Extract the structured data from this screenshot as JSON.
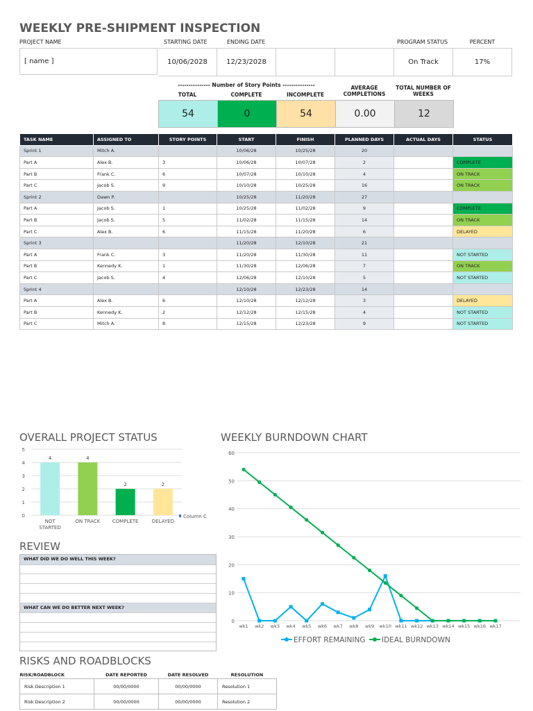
{
  "title": "WEEKLY PRE-SHIPMENT INSPECTION",
  "project": {
    "labels": {
      "name": "PROJECT NAME",
      "start": "STARTING DATE",
      "end": "ENDING DATE",
      "status": "PROGRAM STATUS",
      "percent": "PERCENT COMPLETED"
    },
    "name": "[ name ]",
    "start": "10/06/2028",
    "end": "12/23/2028",
    "status": "On Track",
    "percent": "17%"
  },
  "story_points": {
    "group_label": "---------------  Number of Story Points  ---------------",
    "total_label": "TOTAL",
    "complete_label": "COMPLETE",
    "incomplete_label": "INCOMPLETE",
    "avg_label": "AVERAGE COMPLETIONS",
    "weeks_label": "TOTAL NUMBER OF WEEKS",
    "total": "54",
    "complete": "0",
    "incomplete": "54",
    "avg": "0.00",
    "weeks": "12"
  },
  "tasks": {
    "headers": [
      "TASK NAME",
      "ASSIGNED TO",
      "STORY POINTS",
      "START",
      "FINISH",
      "PLANNED DAYS",
      "ACTUAL DAYS",
      "STATUS"
    ],
    "rows": [
      [
        "Sprint 1",
        "Mitch A.",
        "",
        "10/06/28",
        "10/25/28",
        "20",
        "",
        ""
      ],
      [
        "Part A",
        "Alex B.",
        "3",
        "10/06/28",
        "10/07/28",
        "2",
        "",
        "COMPLETE"
      ],
      [
        "Part B",
        "Frank C.",
        "6",
        "10/07/28",
        "10/10/28",
        "4",
        "",
        "ON TRACK"
      ],
      [
        "Part C",
        "Jacob S.",
        "9",
        "10/10/28",
        "10/25/28",
        "16",
        "",
        "ON TRACK"
      ],
      [
        "Sprint 2",
        "Dawn P.",
        "",
        "10/25/28",
        "11/20/28",
        "27",
        "",
        ""
      ],
      [
        "Part A",
        "Jacob S.",
        "1",
        "10/25/28",
        "11/02/28",
        "9",
        "",
        "COMPLETE"
      ],
      [
        "Part B",
        "Jacob S.",
        "5",
        "11/02/28",
        "11/15/28",
        "14",
        "",
        "ON TRACK"
      ],
      [
        "Part C",
        "Alex B.",
        "6",
        "11/15/28",
        "11/20/28",
        "6",
        "",
        "DELAYED"
      ],
      [
        "Sprint 3",
        "",
        "",
        "11/20/28",
        "12/10/28",
        "21",
        "",
        ""
      ],
      [
        "Part A",
        "Frank C.",
        "3",
        "11/20/28",
        "11/30/28",
        "11",
        "",
        "NOT STARTED"
      ],
      [
        "Part B",
        "Kennedy K.",
        "1",
        "11/30/28",
        "12/06/28",
        "7",
        "",
        "ON TRACK"
      ],
      [
        "Part C",
        "Jacob S.",
        "4",
        "12/06/28",
        "12/10/28",
        "5",
        "",
        "NOT STARTED"
      ],
      [
        "Sprint 4",
        "",
        "",
        "12/10/28",
        "12/23/28",
        "14",
        "",
        ""
      ],
      [
        "Part A",
        "Alex B.",
        "6",
        "12/10/28",
        "12/12/28",
        "3",
        "",
        "DELAYED"
      ],
      [
        "Part B",
        "Kennedy K.",
        "2",
        "12/12/28",
        "12/15/28",
        "4",
        "",
        "NOT STARTED"
      ],
      [
        "Part C",
        "Mitch A.",
        "8",
        "12/15/28",
        "12/23/28",
        "9",
        "",
        "NOT STARTED"
      ]
    ]
  },
  "status_colors": {
    "COMPLETE": "#00b050",
    "ON TRACK": "#92d050",
    "DELAYED": "#ffe699",
    "NOT STARTED": "#aeeee8"
  },
  "overall_title": "OVERALL PROJECT STATUS",
  "burndown_title": "WEEKLY BURNDOWN CHART",
  "chart_data": [
    {
      "type": "bar",
      "categories": [
        "NOT STARTED",
        "ON TRACK",
        "COMPLETE",
        "DELAYED"
      ],
      "values": [
        4,
        4,
        2,
        2
      ],
      "colors": [
        "#aeeee8",
        "#92d050",
        "#00b050",
        "#ffe699"
      ],
      "ylim": [
        0,
        5
      ],
      "yticks": [
        "0",
        "1",
        "2",
        "3",
        "4",
        "5"
      ],
      "legend": "Column C",
      "legend_position": "right",
      "grid": true
    },
    {
      "type": "line",
      "categories": [
        "wk1",
        "wk2",
        "wk3",
        "wk4",
        "wk5",
        "wk6",
        "wk7",
        "wk8",
        "wk9",
        "wk10",
        "wk11",
        "wk12",
        "wk13",
        "wk14",
        "wk15",
        "wk16",
        "wk17"
      ],
      "series": [
        {
          "name": "EFFORT REMAINING",
          "color": "#00b0f0",
          "values": [
            15,
            0,
            0,
            5,
            0,
            6,
            3,
            1,
            4,
            16,
            0,
            0,
            0,
            0,
            0,
            0,
            0
          ]
        },
        {
          "name": "IDEAL BURNDOWN",
          "color": "#00b050",
          "values": [
            54,
            49.5,
            45,
            40.5,
            36,
            31.5,
            27,
            22.5,
            18,
            13.5,
            9,
            4.5,
            0,
            0,
            0,
            0,
            0
          ]
        }
      ],
      "ylim": [
        0,
        60
      ],
      "yticks": [
        "0",
        "10",
        "20",
        "30",
        "40",
        "50",
        "60"
      ],
      "legend_position": "bottom",
      "grid": true
    }
  ],
  "review": {
    "title": "REVIEW",
    "q1": "WHAT DID WE DO WELL THIS WEEK?",
    "q2": "WHAT CAN WE DO BETTER NEXT WEEK?"
  },
  "risks": {
    "title": "RISKS AND ROADBLOCKS",
    "headers": [
      "RISK/ROADBLOCK",
      "DATE REPORTED",
      "DATE RESOLVED",
      "RESOLUTION"
    ],
    "rows": [
      [
        "Risk Description 1",
        "00/00/0000",
        "00/00/0000",
        "Resolution 1"
      ],
      [
        "Risk Description 2",
        "00/00/0000",
        "00/00/0000",
        "Resolution 2"
      ]
    ]
  }
}
